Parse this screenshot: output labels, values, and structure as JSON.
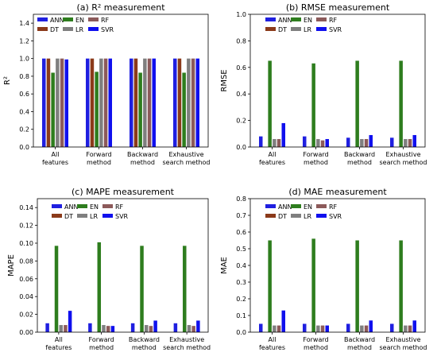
{
  "chart_data": [
    {
      "type": "bar",
      "title": "(a) R² measurement",
      "xlabel": "",
      "ylabel": "R²",
      "ylim": [
        0,
        1.5
      ],
      "yticks": [
        "0.0",
        "0.2",
        "0.4",
        "0.6",
        "0.8",
        "1.0",
        "1.2",
        "1.4"
      ],
      "categories": [
        [
          "All",
          "features"
        ],
        [
          "Forward",
          "method"
        ],
        [
          "Backward",
          "method"
        ],
        [
          "Exhaustive",
          "search method"
        ]
      ],
      "legend": "top-left, 3 columns",
      "series": [
        {
          "name": "ANN",
          "color": "#1f1fe0",
          "values": [
            1.0,
            1.0,
            1.0,
            1.0
          ]
        },
        {
          "name": "DT",
          "color": "#8b3a1a",
          "values": [
            1.0,
            1.0,
            1.0,
            1.0
          ]
        },
        {
          "name": "EN",
          "color": "#2e7d1e",
          "values": [
            0.84,
            0.85,
            0.84,
            0.84
          ]
        },
        {
          "name": "LR",
          "color": "#7f7f7f",
          "values": [
            1.0,
            1.0,
            1.0,
            1.0
          ]
        },
        {
          "name": "RF",
          "color": "#8c5a5a",
          "values": [
            1.0,
            1.0,
            1.0,
            1.0
          ]
        },
        {
          "name": "SVR",
          "color": "#1010ee",
          "values": [
            0.99,
            1.0,
            1.0,
            1.0
          ]
        }
      ]
    },
    {
      "type": "bar",
      "title": "(b) RMSE measurement",
      "xlabel": "",
      "ylabel": "RMSE",
      "ylim": [
        0,
        1.0
      ],
      "yticks": [
        "0.0",
        "0.2",
        "0.4",
        "0.6",
        "0.8",
        "1.0"
      ],
      "categories": [
        [
          "All",
          "features"
        ],
        [
          "Forward",
          "method"
        ],
        [
          "Backward",
          "method"
        ],
        [
          "Exhaustive",
          "search method"
        ]
      ],
      "legend": "top-right, 3 columns",
      "series": [
        {
          "name": "ANN",
          "color": "#1f1fe0",
          "values": [
            0.08,
            0.08,
            0.07,
            0.07
          ]
        },
        {
          "name": "DT",
          "color": "#8b3a1a",
          "values": [
            0.0,
            0.0,
            0.0,
            0.0
          ]
        },
        {
          "name": "EN",
          "color": "#2e7d1e",
          "values": [
            0.65,
            0.63,
            0.65,
            0.65
          ]
        },
        {
          "name": "LR",
          "color": "#7f7f7f",
          "values": [
            0.06,
            0.06,
            0.06,
            0.06
          ]
        },
        {
          "name": "RF",
          "color": "#8c5a5a",
          "values": [
            0.06,
            0.05,
            0.06,
            0.06
          ]
        },
        {
          "name": "SVR",
          "color": "#1010ee",
          "values": [
            0.18,
            0.06,
            0.09,
            0.09
          ]
        }
      ]
    },
    {
      "type": "bar",
      "title": "(c) MAPE measurement",
      "xlabel": "",
      "ylabel": "MAPE",
      "ylim": [
        0,
        0.15
      ],
      "yticks": [
        "0.00",
        "0.02",
        "0.04",
        "0.06",
        "0.08",
        "0.10",
        "0.12",
        "0.14"
      ],
      "categories": [
        [
          "All",
          "features"
        ],
        [
          "Forward",
          "method"
        ],
        [
          "Backward",
          "method"
        ],
        [
          "Exhaustive",
          "search method"
        ]
      ],
      "legend": "top-right, 3 columns",
      "series": [
        {
          "name": "ANN",
          "color": "#1f1fe0",
          "values": [
            0.01,
            0.01,
            0.01,
            0.01
          ]
        },
        {
          "name": "DT",
          "color": "#8b3a1a",
          "values": [
            0.0,
            0.0,
            0.0,
            0.0
          ]
        },
        {
          "name": "EN",
          "color": "#2e7d1e",
          "values": [
            0.097,
            0.101,
            0.097,
            0.097
          ]
        },
        {
          "name": "LR",
          "color": "#7f7f7f",
          "values": [
            0.008,
            0.008,
            0.008,
            0.008
          ]
        },
        {
          "name": "RF",
          "color": "#8c5a5a",
          "values": [
            0.008,
            0.007,
            0.007,
            0.007
          ]
        },
        {
          "name": "SVR",
          "color": "#1010ee",
          "values": [
            0.024,
            0.007,
            0.013,
            0.013
          ]
        }
      ]
    },
    {
      "type": "bar",
      "title": "(d) MAE measurement",
      "xlabel": "",
      "ylabel": "MAE",
      "ylim": [
        0,
        0.8
      ],
      "yticks": [
        "0.0",
        "0.1",
        "0.2",
        "0.3",
        "0.4",
        "0.5",
        "0.6",
        "0.7",
        "0.8"
      ],
      "categories": [
        [
          "All",
          "features"
        ],
        [
          "Forward",
          "method"
        ],
        [
          "Backward",
          "method"
        ],
        [
          "Exhaustive",
          "search method"
        ]
      ],
      "legend": "top-right, 3 columns",
      "series": [
        {
          "name": "ANN",
          "color": "#1f1fe0",
          "values": [
            0.05,
            0.05,
            0.05,
            0.05
          ]
        },
        {
          "name": "DT",
          "color": "#8b3a1a",
          "values": [
            0.0,
            0.0,
            0.0,
            0.0
          ]
        },
        {
          "name": "EN",
          "color": "#2e7d1e",
          "values": [
            0.55,
            0.56,
            0.55,
            0.55
          ]
        },
        {
          "name": "LR",
          "color": "#7f7f7f",
          "values": [
            0.04,
            0.04,
            0.04,
            0.04
          ]
        },
        {
          "name": "RF",
          "color": "#8c5a5a",
          "values": [
            0.04,
            0.04,
            0.04,
            0.04
          ]
        },
        {
          "name": "SVR",
          "color": "#1010ee",
          "values": [
            0.13,
            0.04,
            0.07,
            0.07
          ]
        }
      ]
    }
  ]
}
